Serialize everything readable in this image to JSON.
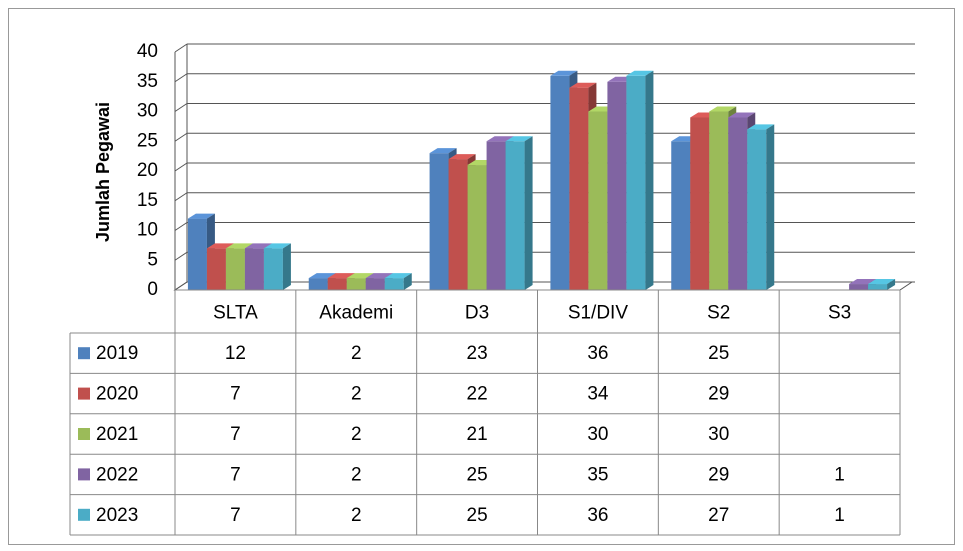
{
  "chart_data": {
    "type": "bar",
    "y_label": "Jumlah Pegawai",
    "categories": [
      "SLTA",
      "Akademi",
      "D3",
      "S1/DIV",
      "S2",
      "S3"
    ],
    "series": [
      {
        "name": "2019",
        "color": "#4f81bd",
        "values": [
          12,
          2,
          23,
          36,
          25,
          null
        ]
      },
      {
        "name": "2020",
        "color": "#c0504d",
        "values": [
          7,
          2,
          22,
          34,
          29,
          null
        ]
      },
      {
        "name": "2021",
        "color": "#9bbb59",
        "values": [
          7,
          2,
          21,
          30,
          30,
          null
        ]
      },
      {
        "name": "2022",
        "color": "#8064a2",
        "values": [
          7,
          2,
          25,
          35,
          29,
          1
        ]
      },
      {
        "name": "2023",
        "color": "#4bacc6",
        "values": [
          7,
          2,
          25,
          36,
          27,
          1
        ]
      }
    ],
    "ylim": [
      0,
      40
    ],
    "yticks": [
      0,
      5,
      10,
      15,
      20,
      25,
      30,
      35,
      40
    ],
    "grid": true
  }
}
